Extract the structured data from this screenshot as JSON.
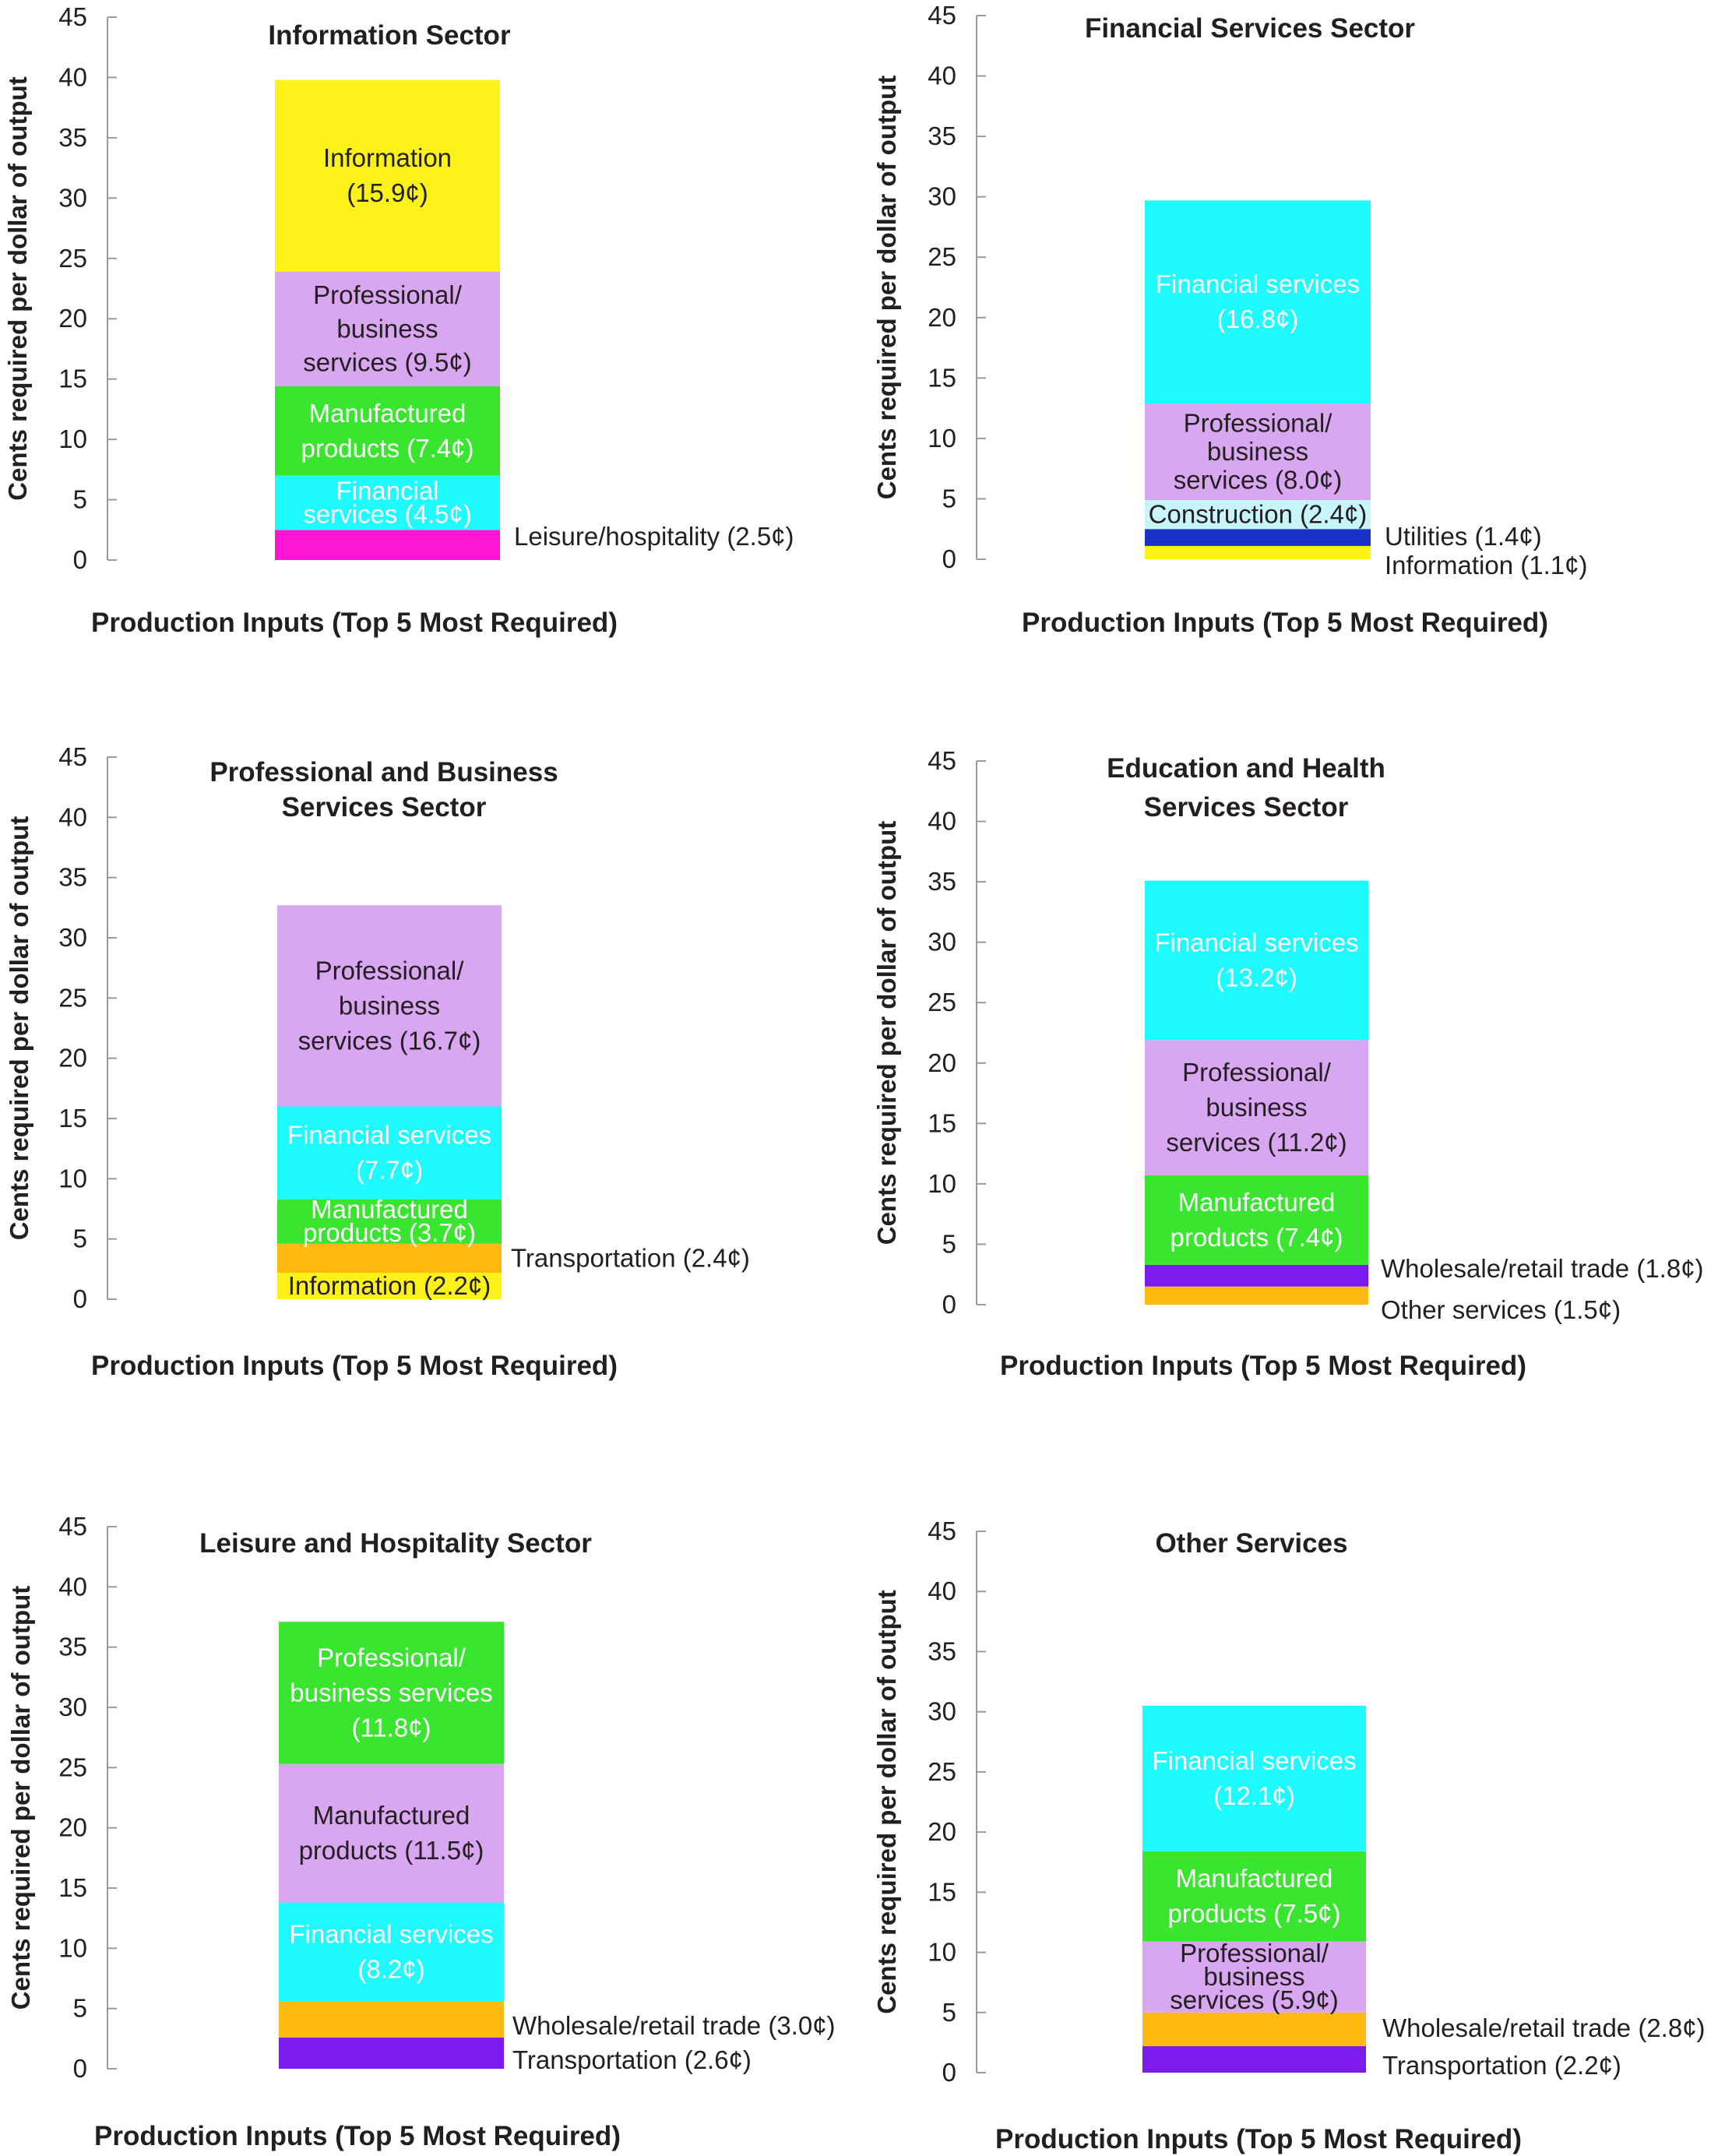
{
  "colors": {
    "axis": "#9a9a9a",
    "text_dark": "#231f20",
    "text_light": "#ffffff"
  },
  "chart_data": [
    {
      "type": "bar",
      "stacked": true,
      "title": [
        "Information Sector"
      ],
      "xlabel": "Production Inputs (Top 5 Most Required)",
      "ylabel": "Cents required per dollar of output",
      "ylim": [
        0,
        45
      ],
      "yticks": [
        "0",
        "5",
        "10",
        "15",
        "20",
        "25",
        "30",
        "35",
        "40",
        "45"
      ],
      "segments": [
        {
          "name": "Leisure/hospitality",
          "value": 2.5,
          "color": "#ff16d4",
          "label": [
            "Leisure/hospitality (2.5¢)"
          ],
          "label_pos": "outside",
          "text_color": "dark"
        },
        {
          "name": "Financial services",
          "value": 4.5,
          "color": "#1dfbff",
          "label": [
            "Financial",
            "services  (4.5¢)"
          ],
          "label_pos": "inside",
          "text_color": "light"
        },
        {
          "name": "Manufactured products",
          "value": 7.4,
          "color": "#3ae52f",
          "label": [
            "Manufactured",
            "products (7.4¢)"
          ],
          "label_pos": "inside",
          "text_color": "light"
        },
        {
          "name": "Professional/business services",
          "value": 9.5,
          "color": "#d9a6f2",
          "label": [
            "Professional/",
            "business",
            "services (9.5¢)"
          ],
          "label_pos": "inside",
          "text_color": "dark"
        },
        {
          "name": "Information",
          "value": 15.9,
          "color": "#fdf218",
          "label": [
            "Information",
            "(15.9¢)"
          ],
          "label_pos": "inside",
          "text_color": "dark"
        }
      ]
    },
    {
      "type": "bar",
      "stacked": true,
      "title": [
        "Financial Services Sector"
      ],
      "xlabel": "Production Inputs (Top 5 Most Required)",
      "ylabel": "Cents required per dollar of output",
      "ylim": [
        0,
        45
      ],
      "yticks": [
        "0",
        "5",
        "10",
        "15",
        "20",
        "25",
        "30",
        "35",
        "40",
        "45"
      ],
      "segments": [
        {
          "name": "Information",
          "value": 1.1,
          "color": "#fdf218",
          "label": [
            "Information (1.1¢)"
          ],
          "label_pos": "outside",
          "text_color": "dark"
        },
        {
          "name": "Utilities",
          "value": 1.4,
          "color": "#1b32c7",
          "label": [
            "Utilities  (1.4¢)"
          ],
          "label_pos": "outside",
          "text_color": "dark"
        },
        {
          "name": "Construction",
          "value": 2.4,
          "color": "#c7f5fb",
          "label": [
            "Construction  (2.4¢)"
          ],
          "label_pos": "inside",
          "text_color": "dark"
        },
        {
          "name": "Professional/business services",
          "value": 8.0,
          "color": "#d9a6f2",
          "label": [
            "Professional/",
            "business",
            "services (8.0¢)"
          ],
          "label_pos": "inside",
          "text_color": "dark"
        },
        {
          "name": "Financial services",
          "value": 16.8,
          "color": "#1dfbff",
          "label": [
            "Financial services",
            "(16.8¢)"
          ],
          "label_pos": "inside",
          "text_color": "light"
        }
      ]
    },
    {
      "type": "bar",
      "stacked": true,
      "title": [
        "Professional and Business",
        "Services Sector"
      ],
      "xlabel": "Production Inputs (Top 5 Most Required)",
      "ylabel": "Cents required per dollar of output",
      "ylim": [
        0,
        45
      ],
      "yticks": [
        "0",
        "5",
        "10",
        "15",
        "20",
        "25",
        "30",
        "35",
        "40",
        "45"
      ],
      "segments": [
        {
          "name": "Information",
          "value": 2.2,
          "color": "#fdf218",
          "label": [
            "Information  (2.2¢)"
          ],
          "label_pos": "inside",
          "text_color": "dark"
        },
        {
          "name": "Transportation",
          "value": 2.4,
          "color": "#ffb90f",
          "label": [
            "Transportation (2.4¢)"
          ],
          "label_pos": "outside",
          "text_color": "dark"
        },
        {
          "name": "Manufactured products",
          "value": 3.7,
          "color": "#3ae52f",
          "label": [
            "Manufactured",
            "products (3.7¢)"
          ],
          "label_pos": "inside",
          "text_color": "light"
        },
        {
          "name": "Financial services",
          "value": 7.7,
          "color": "#1dfbff",
          "label": [
            "Financial services",
            "(7.7¢)"
          ],
          "label_pos": "inside",
          "text_color": "light"
        },
        {
          "name": "Professional/business services",
          "value": 16.7,
          "color": "#d9a6f2",
          "label": [
            "Professional/",
            "business",
            "services (16.7¢)"
          ],
          "label_pos": "inside",
          "text_color": "dark"
        }
      ]
    },
    {
      "type": "bar",
      "stacked": true,
      "title": [
        "Education and Health",
        "Services Sector"
      ],
      "xlabel": "Production Inputs (Top 5 Most Required)",
      "ylabel": "Cents required per dollar of output",
      "ylim": [
        0,
        45
      ],
      "yticks": [
        "0",
        "5",
        "10",
        "15",
        "20",
        "25",
        "30",
        "35",
        "40",
        "45"
      ],
      "segments": [
        {
          "name": "Other services",
          "value": 1.5,
          "color": "#ffb90f",
          "label": [
            "Other services (1.5¢)"
          ],
          "label_pos": "outside",
          "text_color": "dark"
        },
        {
          "name": "Wholesale/retail trade",
          "value": 1.8,
          "color": "#7b1bee",
          "label": [
            "Wholesale/retail trade  (1.8¢)"
          ],
          "label_pos": "outside",
          "text_color": "dark"
        },
        {
          "name": "Manufactured products",
          "value": 7.4,
          "color": "#3ae52f",
          "label": [
            "Manufactured",
            "products (7.4¢)"
          ],
          "label_pos": "inside",
          "text_color": "light"
        },
        {
          "name": "Professional/business services",
          "value": 11.2,
          "color": "#d9a6f2",
          "label": [
            "Professional/",
            "business",
            "services (11.2¢)"
          ],
          "label_pos": "inside",
          "text_color": "dark"
        },
        {
          "name": "Financial services",
          "value": 13.2,
          "color": "#1dfbff",
          "label": [
            "Financial services",
            "(13.2¢)"
          ],
          "label_pos": "inside",
          "text_color": "light"
        }
      ]
    },
    {
      "type": "bar",
      "stacked": true,
      "title": [
        "Leisure and Hospitality Sector"
      ],
      "xlabel": "Production Inputs (Top 5 Most Required)",
      "ylabel": "Cents required per dollar of output",
      "ylim": [
        0,
        45
      ],
      "yticks": [
        "0",
        "5",
        "10",
        "15",
        "20",
        "25",
        "30",
        "35",
        "40",
        "45"
      ],
      "segments": [
        {
          "name": "Transportation",
          "value": 2.6,
          "color": "#7b1bee",
          "label": [
            "Transportation  (2.6¢)"
          ],
          "label_pos": "outside",
          "text_color": "dark"
        },
        {
          "name": "Wholesale/retail trade",
          "value": 3.0,
          "color": "#ffb90f",
          "label": [
            "Wholesale/retail trade (3.0¢)"
          ],
          "label_pos": "outside",
          "text_color": "dark"
        },
        {
          "name": "Financial services",
          "value": 8.2,
          "color": "#1dfbff",
          "label": [
            "Financial services",
            "(8.2¢)"
          ],
          "label_pos": "inside",
          "text_color": "light"
        },
        {
          "name": "Manufactured products",
          "value": 11.5,
          "color": "#d9a6f2",
          "label": [
            "Manufactured",
            "products (11.5¢)"
          ],
          "label_pos": "inside",
          "text_color": "dark"
        },
        {
          "name": "Professional/business services",
          "value": 11.8,
          "color": "#3ae52f",
          "label": [
            "Professional/",
            "business services",
            "(11.8¢)"
          ],
          "label_pos": "inside",
          "text_color": "light"
        }
      ]
    },
    {
      "type": "bar",
      "stacked": true,
      "title": [
        "Other Services"
      ],
      "xlabel": "Production Inputs (Top 5 Most Required)",
      "ylabel": "Cents required per dollar of output",
      "ylim": [
        0,
        45
      ],
      "yticks": [
        "0",
        "5",
        "10",
        "15",
        "20",
        "25",
        "30",
        "35",
        "40",
        "45"
      ],
      "segments": [
        {
          "name": "Transportation",
          "value": 2.2,
          "color": "#7b1bee",
          "label": [
            "Transportation (2.2¢)"
          ],
          "label_pos": "outside",
          "text_color": "dark"
        },
        {
          "name": "Wholesale/retail trade",
          "value": 2.8,
          "color": "#ffb90f",
          "label": [
            "Wholesale/retail trade  (2.8¢)"
          ],
          "label_pos": "outside",
          "text_color": "dark"
        },
        {
          "name": "Professional/business services",
          "value": 5.9,
          "color": "#d9a6f2",
          "label": [
            "Professional/",
            "business",
            "services (5.9¢)"
          ],
          "label_pos": "inside",
          "text_color": "dark"
        },
        {
          "name": "Manufactured products",
          "value": 7.5,
          "color": "#3ae52f",
          "label": [
            "Manufactured",
            "products (7.5¢)"
          ],
          "label_pos": "inside",
          "text_color": "light"
        },
        {
          "name": "Financial services",
          "value": 12.1,
          "color": "#1dfbff",
          "label": [
            "Financial services",
            "(12.1¢)"
          ],
          "label_pos": "inside",
          "text_color": "light"
        }
      ]
    }
  ]
}
